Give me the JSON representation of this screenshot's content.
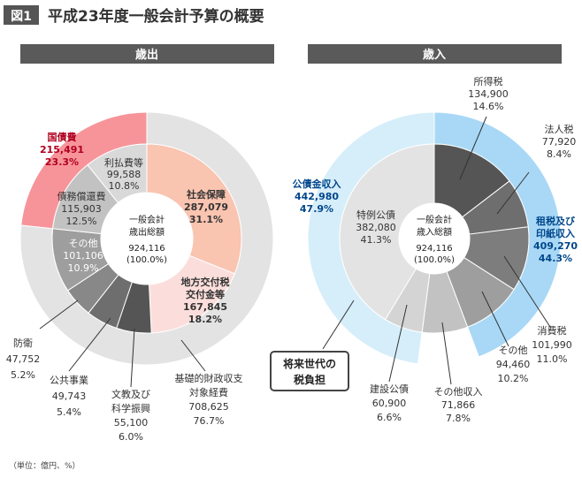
{
  "figure": {
    "badge": "図1",
    "title": "平成23年度一般会計予算の概要",
    "unit_note": "（単位：億円、%）"
  },
  "colors": {
    "header_bar": "#5a5a5a",
    "outer_ring_grey": "#e3e3e3",
    "outer_ring_light_blue": "#d6eefa",
    "outer_ring_blue": "#a8d8f6",
    "pink_strong": "#f7949a",
    "salmon": "#f9c4b0",
    "pink_light": "#fbdedb",
    "light_grey": "#d9d9d9",
    "mid_grey": "#c2c2c2",
    "dark_grey_1": "#555555",
    "dark_grey_2": "#6e6e6e",
    "dark_grey_3": "#888888",
    "dark_grey_4": "#9e9e9e",
    "callout_border": "#444444"
  },
  "chart_data": [
    {
      "type": "pie",
      "title": "歳出",
      "center_label": [
        "一般会計",
        "歳出総額",
        "924,116",
        "(100.0%)"
      ],
      "total": 924116,
      "inner_ring": [
        {
          "name": "社会保障",
          "value": 287079,
          "percent": 31.1,
          "color": "#f9c4b0"
        },
        {
          "name": "地方交付税交付金等",
          "value": 167845,
          "percent": 18.2,
          "color": "#fbdedb"
        },
        {
          "name": "文教及び科学振興",
          "value": 55100,
          "percent": 6.0,
          "color": "#555555"
        },
        {
          "name": "公共事業",
          "value": 49743,
          "percent": 5.4,
          "color": "#6e6e6e"
        },
        {
          "name": "防衛",
          "value": 47752,
          "percent": 5.2,
          "color": "#888888"
        },
        {
          "name": "その他",
          "value": 101106,
          "percent": 10.9,
          "color": "#9e9e9e"
        },
        {
          "name": "債務償還費",
          "value": 115903,
          "percent": 12.5,
          "color": "#c2c2c2"
        },
        {
          "name": "利払費等",
          "value": 99588,
          "percent": 10.8,
          "color": "#d9d9d9"
        }
      ],
      "outer_ring": [
        {
          "name": "基礎的財政収支対象経費",
          "value": 708625,
          "percent": 76.7,
          "color": "#e3e3e3"
        },
        {
          "name": "国債費",
          "value": 215491,
          "percent": 23.3,
          "color": "#f7949a"
        }
      ],
      "labels": {
        "social_name": "社会保障",
        "social_value": "287,079",
        "social_pct": "31.1%",
        "lat_name1": "地方交付税",
        "lat_name2": "交付金等",
        "lat_value": "167,845",
        "lat_pct": "18.2%",
        "edu_name1": "文教及び",
        "edu_name2": "科学振興",
        "edu_value": "55,100",
        "edu_pct": "6.0%",
        "public_name": "公共事業",
        "public_value": "49,743",
        "public_pct": "5.4%",
        "defense_name": "防衛",
        "defense_value": "47,752",
        "defense_pct": "5.2%",
        "other_name": "その他",
        "other_value": "101,106",
        "other_pct": "10.9%",
        "debt_name": "債務償還費",
        "debt_value": "115,903",
        "debt_pct": "12.5%",
        "interest_name": "利払費等",
        "interest_value": "99,588",
        "interest_pct": "10.8%",
        "basic_name1": "基礎的財政収支",
        "basic_name2": "対象経費",
        "basic_value": "708,625",
        "basic_pct": "76.7%",
        "bond_name": "国債費",
        "bond_value": "215,491",
        "bond_pct": "23.3%"
      }
    },
    {
      "type": "pie",
      "title": "歳入",
      "center_label": [
        "一般会計",
        "歳入総額",
        "924,116",
        "(100.0%)"
      ],
      "total": 924116,
      "inner_ring": [
        {
          "name": "所得税",
          "value": 134900,
          "percent": 14.6,
          "color": "#555555"
        },
        {
          "name": "法人税",
          "value": 77920,
          "percent": 8.4,
          "color": "#6e6e6e"
        },
        {
          "name": "消費税",
          "value": 101990,
          "percent": 11.0,
          "color": "#7d7d7d"
        },
        {
          "name": "その他",
          "value": 94460,
          "percent": 10.2,
          "color": "#9e9e9e"
        },
        {
          "name": "その他収入",
          "value": 71866,
          "percent": 7.8,
          "color": "#c2c2c2"
        },
        {
          "name": "建設公債",
          "value": 60900,
          "percent": 6.6,
          "color": "#d4d4d4"
        },
        {
          "name": "特例公債",
          "value": 382080,
          "percent": 41.3,
          "color": "#e3e3e3"
        }
      ],
      "outer_ring": [
        {
          "name": "租税及び印紙収入",
          "value": 409270,
          "percent": 44.3,
          "color": "#a8d8f6"
        },
        {
          "name": "その他収入",
          "value": 71866,
          "percent": 7.8,
          "color": "#ffffff"
        },
        {
          "name": "公債金収入",
          "value": 442980,
          "percent": 47.9,
          "color": "#d6eefa"
        }
      ],
      "labels": {
        "income_name": "所得税",
        "income_value": "134,900",
        "income_pct": "14.6%",
        "corp_name": "法人税",
        "corp_value": "77,920",
        "corp_pct": "8.4%",
        "tax_name1": "租税及び",
        "tax_name2": "印紙収入",
        "tax_value": "409,270",
        "tax_pct": "44.3%",
        "cons_name": "消費税",
        "cons_value": "101,990",
        "cons_pct": "11.0%",
        "other_name": "その他",
        "other_value": "94,460",
        "other_pct": "10.2%",
        "otherrev_name": "その他収入",
        "otherrev_value": "71,866",
        "otherrev_pct": "7.8%",
        "constr_name": "建設公債",
        "constr_value": "60,900",
        "constr_pct": "6.6%",
        "special_name": "特例公債",
        "special_value": "382,080",
        "special_pct": "41.3%",
        "bondrev_name": "公債金収入",
        "bondrev_value": "442,980",
        "bondrev_pct": "47.9%",
        "callout1": "将来世代の",
        "callout2": "税負担"
      }
    }
  ]
}
